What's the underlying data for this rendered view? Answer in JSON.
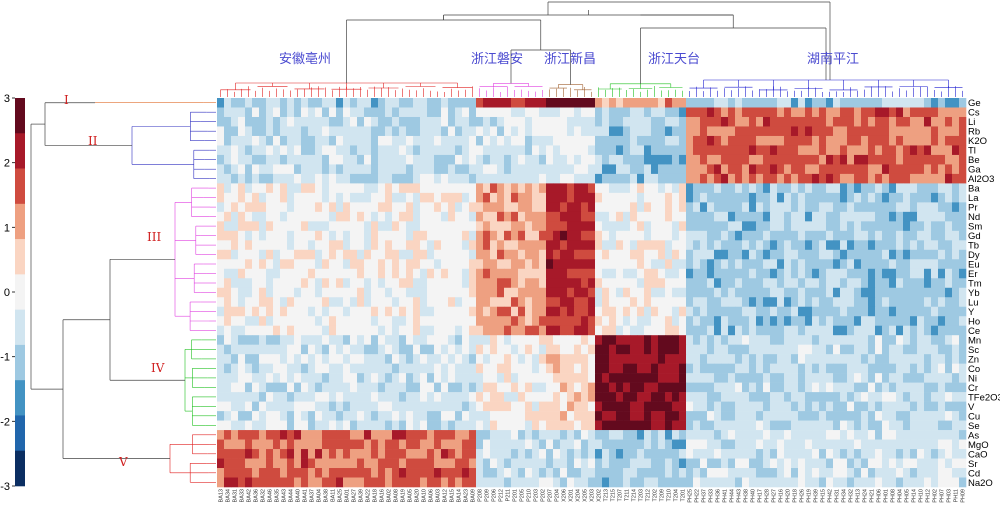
{
  "chart_data": {
    "type": "heatmap",
    "title": "",
    "xlabel": "",
    "ylabel": "",
    "colorbar": {
      "range": [
        -3,
        3
      ],
      "ticks": [
        "3",
        "2",
        "1",
        "0",
        "-1",
        "-2",
        "-3"
      ],
      "colors": [
        "#630a1e",
        "#a71929",
        "#cf4b3f",
        "#eea081",
        "#fad5c2",
        "#f4f4f4",
        "#d1e5f0",
        "#9ec9e2",
        "#4393c3",
        "#2166ac",
        "#0b2e62"
      ]
    },
    "column_groups": [
      {
        "label": "安徽亳州",
        "samples": [
          "BA13",
          "BA34",
          "BA31",
          "BA33",
          "BA42",
          "BA36",
          "BA32",
          "BA46",
          "BA35",
          "BA43",
          "BA44",
          "BA40",
          "BA41",
          "BA37",
          "BA04",
          "BA38",
          "BA11",
          "BA25",
          "BA01",
          "BA27",
          "BA39",
          "BA22",
          "BA18",
          "BA16",
          "BA02",
          "BA08",
          "BA19",
          "BA05",
          "BA20",
          "BA10",
          "BA06",
          "BA03",
          "BA12",
          "BA15",
          "BA14",
          "BA23",
          "BA09"
        ],
        "color": "#e02020"
      },
      {
        "label": "浙江磐安",
        "samples": [
          "P208",
          "P209",
          "P206",
          "P212",
          "P211",
          "P201",
          "P205",
          "P210",
          "P203",
          "P202"
        ],
        "color": "#e040e0"
      },
      {
        "label": "浙江新昌",
        "samples": [
          "P207",
          "P204",
          "X206",
          "X201",
          "X204",
          "X205",
          "X203"
        ],
        "color": "#a06030"
      },
      {
        "label": "浙江天台",
        "samples": [
          "X202",
          "T213",
          "T215",
          "T207",
          "T211",
          "T214",
          "T203",
          "T212",
          "T202",
          "T209",
          "T210",
          "T204",
          "T201"
        ],
        "color": "#20c020"
      },
      {
        "label": "湖南平江",
        "samples": [
          "PH25",
          "PH22",
          "PH37",
          "PH33",
          "PH36",
          "PH41",
          "PH44",
          "PH43",
          "PH38",
          "PH40",
          "PH17",
          "PH28",
          "PH27",
          "PH16",
          "PH20",
          "PH18",
          "PH26",
          "PH19",
          "PH39",
          "PH15",
          "PH42",
          "PH31",
          "PH34",
          "PH32",
          "PH13",
          "PH24",
          "PH21",
          "PH06",
          "PH01",
          "PH08",
          "PH04",
          "PH05",
          "PH14",
          "PH10",
          "PH12",
          "PH02",
          "PH07",
          "PH03",
          "PH11",
          "PH09"
        ],
        "color": "#2020d0"
      }
    ],
    "row_groups": [
      {
        "label": "I",
        "elements": [
          "Ge"
        ],
        "color": "#e07030"
      },
      {
        "label": "II",
        "elements": [
          "Cs",
          "Li",
          "Rb",
          "K2O",
          "Tl",
          "Be",
          "Ga",
          "Al2O3"
        ],
        "color": "#3030c0"
      },
      {
        "label": "III",
        "elements": [
          "Ba",
          "La",
          "Pr",
          "Nd",
          "Sm",
          "Gd",
          "Tb",
          "Dy",
          "Eu",
          "Er",
          "Tm",
          "Yb",
          "Lu",
          "Y",
          "Ho",
          "Ce"
        ],
        "color": "#e040e0"
      },
      {
        "label": "IV",
        "elements": [
          "Mn",
          "Sc",
          "Zn",
          "Co",
          "Ni",
          "Cr",
          "TFe2O3",
          "V",
          "Cu",
          "Se"
        ],
        "color": "#20c020"
      },
      {
        "label": "V",
        "elements": [
          "As",
          "MgO",
          "CaO",
          "Sr",
          "Cd",
          "Na2O"
        ],
        "color": "#e02020"
      }
    ],
    "block_values": [
      [
        -1,
        2,
        3,
        1,
        -1
      ],
      [
        -0.6,
        -0.5,
        -0.3,
        -1,
        1.5
      ],
      [
        0,
        1,
        2,
        0,
        -1
      ],
      [
        -0.5,
        0,
        0.5,
        2.5,
        -0.7
      ],
      [
        1.5,
        -0.6,
        -0.6,
        -1,
        -0.5
      ]
    ]
  }
}
